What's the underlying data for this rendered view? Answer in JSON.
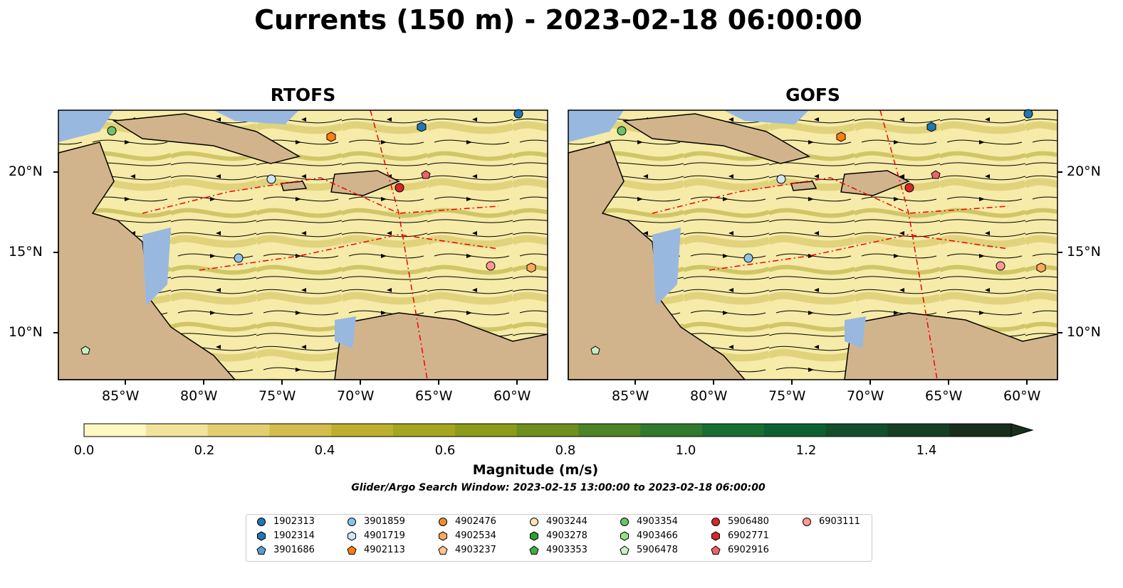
{
  "title": "Currents (150 m) - 2023-02-18 06:00:00",
  "panels": [
    {
      "title": "RTOFS"
    },
    {
      "title": "GOFS"
    }
  ],
  "lon_ticks": [
    "85°W",
    "80°W",
    "75°W",
    "70°W",
    "65°W",
    "60°W"
  ],
  "lat_ticks": [
    "20°N",
    "15°N",
    "10°N"
  ],
  "colorbar": {
    "label": "Magnitude (m/s)",
    "ticks": [
      "0.0",
      "0.2",
      "0.4",
      "0.6",
      "0.8",
      "1.0",
      "1.2",
      "1.4"
    ],
    "range": [
      0,
      1.5
    ],
    "colors": [
      "#fff8c2",
      "#f3e39a",
      "#e4cf70",
      "#d3bd4c",
      "#bdb030",
      "#a5a620",
      "#8c9c1a",
      "#6e8f1c",
      "#4e8424",
      "#2f7a2c",
      "#186e30",
      "#0e6032",
      "#134f2c",
      "#163f24",
      "#172f1c"
    ]
  },
  "search_window": "Glider/Argo Search Window: 2023-02-15 13:00:00 to 2023-02-18 06:00:00",
  "legend": {
    "items": [
      {
        "id": "1902313",
        "marker": "circle",
        "color": "#1f77b4"
      },
      {
        "id": "1902314",
        "marker": "hexagon",
        "color": "#1f77b4"
      },
      {
        "id": "3901686",
        "marker": "pentagon",
        "color": "#5b9bd5"
      },
      {
        "id": "3901859",
        "marker": "circle",
        "color": "#8fc3e8"
      },
      {
        "id": "4901719",
        "marker": "hexagon",
        "color": "#cfe6f6"
      },
      {
        "id": "4902113",
        "marker": "pentagon",
        "color": "#ff7f0e"
      },
      {
        "id": "4902476",
        "marker": "circle",
        "color": "#f08c2e"
      },
      {
        "id": "4902534",
        "marker": "hexagon",
        "color": "#ffa85c"
      },
      {
        "id": "4903237",
        "marker": "pentagon",
        "color": "#ffc690"
      },
      {
        "id": "4903244",
        "marker": "circle",
        "color": "#ffe0c0"
      },
      {
        "id": "4903278",
        "marker": "hexagon",
        "color": "#2ca02c"
      },
      {
        "id": "4903353",
        "marker": "pentagon",
        "color": "#3fae3f"
      },
      {
        "id": "4903354",
        "marker": "circle",
        "color": "#6cc26c"
      },
      {
        "id": "4903466",
        "marker": "hexagon",
        "color": "#98df8a"
      },
      {
        "id": "5906478",
        "marker": "pentagon",
        "color": "#c8f0c0"
      },
      {
        "id": "5906480",
        "marker": "circle",
        "color": "#d62728"
      },
      {
        "id": "6902771",
        "marker": "hexagon",
        "color": "#d62728"
      },
      {
        "id": "6902916",
        "marker": "pentagon",
        "color": "#e8656a"
      },
      {
        "id": "6903111",
        "marker": "circle",
        "color": "#ff9896"
      }
    ]
  }
}
